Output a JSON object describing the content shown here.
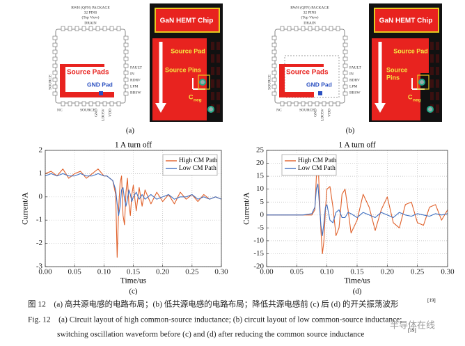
{
  "panels": [
    {
      "package_title": "RWH (QFN) PACKAGE",
      "pins": "32 PINS",
      "view": "(Top View)",
      "drain": "DRAIN",
      "source_pads": "Source Pads",
      "gnd_pad": "GND Pad",
      "right_pins": [
        "FAULT",
        "IN",
        "RDRV",
        "LPM",
        "BBSW"
      ],
      "left_label": "SOURCE",
      "bottom_labels": [
        "NC",
        "SOURCE",
        "GND",
        "LDO5V",
        "VDD"
      ],
      "chip": "GaN HEMT Chip",
      "source_pad": "Source Pad",
      "source_pins": [
        "Source Pins"
      ],
      "cneg": "C",
      "cneg_sub": "neg",
      "label": "(a)"
    },
    {
      "package_title": "RWH (QFN) PACKAGE",
      "pins": "32 PINS",
      "view": "(Top View)",
      "drain": "DRAIN",
      "source_pads": "Source Pads",
      "gnd_pad": "GND Pad",
      "right_pins": [
        "FAULT",
        "IN",
        "RDRV",
        "LPM",
        "BBSW"
      ],
      "left_label": "SOURCE",
      "bottom_labels": [
        "NC",
        "SOURCE",
        "GND",
        "LDO5V",
        "VDD"
      ],
      "chip": "GaN HEMT Chip",
      "source_pad": "Source Pad",
      "source_pins": [
        "Source",
        "Pins"
      ],
      "cneg": "C",
      "cneg_sub": "neg",
      "label": "(b)"
    }
  ],
  "chart_data": [
    {
      "type": "line",
      "title": "1 A turn off",
      "x_label": "Time/us",
      "y_label": "Current/A",
      "panel_label": "(c)",
      "grid": true,
      "legend": "upper right",
      "xlim": [
        0,
        0.3
      ],
      "ylim": [
        -3,
        2
      ],
      "xticks": [
        {
          "value": 0,
          "label": "0.00"
        },
        {
          "value": 0.05,
          "label": "0.05"
        },
        {
          "value": 0.1,
          "label": "0.10"
        },
        {
          "value": 0.15,
          "label": "0.15"
        },
        {
          "value": 0.2,
          "label": "0.20"
        },
        {
          "value": 0.25,
          "label": "0.25"
        },
        {
          "value": 0.3,
          "label": "0.30"
        }
      ],
      "yticks": [
        -3,
        -2,
        -1,
        0,
        1,
        2
      ],
      "x": [
        0,
        0.01,
        0.02,
        0.03,
        0.04,
        0.05,
        0.06,
        0.07,
        0.08,
        0.09,
        0.1,
        0.105,
        0.11,
        0.115,
        0.12,
        0.1225,
        0.125,
        0.1275,
        0.13,
        0.1325,
        0.135,
        0.1375,
        0.14,
        0.1425,
        0.145,
        0.1475,
        0.15,
        0.155,
        0.16,
        0.165,
        0.17,
        0.18,
        0.19,
        0.2,
        0.21,
        0.22,
        0.23,
        0.24,
        0.25,
        0.26,
        0.27,
        0.28,
        0.29,
        0.3
      ],
      "series": [
        {
          "name": "High CM Path",
          "color": "#e0602a",
          "values": [
            1.0,
            1.1,
            0.9,
            1.2,
            0.8,
            1.0,
            1.1,
            0.8,
            1.0,
            1.2,
            0.9,
            0.9,
            0.8,
            0.7,
            0.1,
            -2.6,
            -0.5,
            0.6,
            0.9,
            -0.8,
            -1.2,
            0.2,
            0.8,
            -0.3,
            -0.8,
            0.1,
            0.5,
            -0.6,
            0.4,
            -0.4,
            0.3,
            -0.3,
            0.2,
            -0.2,
            0.1,
            -0.3,
            0.2,
            -0.1,
            0.1,
            -0.2,
            0.1,
            -0.1,
            0.0,
            -0.1
          ]
        },
        {
          "name": "Low CM Path",
          "color": "#3f6fc0",
          "values": [
            0.9,
            1.0,
            0.9,
            1.0,
            0.9,
            0.9,
            1.0,
            0.9,
            0.9,
            1.0,
            0.9,
            0.9,
            0.8,
            0.7,
            0.3,
            -0.3,
            -0.8,
            -0.4,
            0.3,
            0.4,
            -0.1,
            -0.4,
            -0.1,
            0.3,
            0.1,
            -0.2,
            0.0,
            0.2,
            -0.1,
            0.1,
            -0.1,
            0.1,
            -0.1,
            0.0,
            0.1,
            -0.1,
            0.0,
            0.0,
            0.1,
            -0.1,
            0.0,
            -0.1,
            0.0,
            -0.1
          ]
        }
      ]
    },
    {
      "type": "line",
      "title": "1 A turn off",
      "x_label": "Time/us",
      "y_label": "Current/A",
      "panel_label": "(d)",
      "grid": true,
      "legend": "upper left",
      "xlim": [
        0,
        0.3
      ],
      "ylim": [
        -20,
        25
      ],
      "xticks": [
        {
          "value": 0,
          "label": "0.00"
        },
        {
          "value": 0.05,
          "label": "0.05"
        },
        {
          "value": 0.1,
          "label": "0.10"
        },
        {
          "value": 0.15,
          "label": "0.15"
        },
        {
          "value": 0.2,
          "label": "0.20"
        },
        {
          "value": 0.25,
          "label": "0.25"
        },
        {
          "value": 0.3,
          "label": "0.30"
        }
      ],
      "yticks": [
        -20,
        -15,
        -10,
        -5,
        0,
        5,
        10,
        15,
        20,
        25
      ],
      "x": [
        0,
        0.02,
        0.04,
        0.06,
        0.075,
        0.08,
        0.0825,
        0.085,
        0.0875,
        0.09,
        0.0925,
        0.095,
        0.0975,
        0.1,
        0.105,
        0.11,
        0.115,
        0.12,
        0.125,
        0.13,
        0.135,
        0.14,
        0.15,
        0.16,
        0.17,
        0.18,
        0.19,
        0.2,
        0.21,
        0.22,
        0.23,
        0.24,
        0.25,
        0.26,
        0.27,
        0.28,
        0.29,
        0.3
      ],
      "series": [
        {
          "name": "High CM Path",
          "color": "#e0602a",
          "values": [
            0,
            0,
            0,
            0,
            0,
            2,
            15,
            22,
            8,
            -6,
            -15,
            -10,
            2,
            10,
            11,
            3,
            -8,
            -5,
            8,
            10,
            2,
            -7,
            -2,
            8,
            3,
            -6,
            2,
            7,
            -3,
            -5,
            4,
            5,
            -3,
            -4,
            3,
            4,
            -2,
            2
          ]
        },
        {
          "name": "Low CM Path",
          "color": "#3f6fc0",
          "values": [
            0,
            0,
            0,
            0,
            0.5,
            3,
            10,
            12,
            4,
            -4,
            -8,
            -3,
            3,
            4,
            -2,
            -3,
            1,
            2,
            -1,
            -1,
            1,
            0.5,
            -1,
            1,
            0,
            -1,
            1,
            0,
            -1,
            1,
            0,
            -0.5,
            0.5,
            0,
            -0.5,
            0.5,
            0,
            0.5
          ]
        }
      ]
    }
  ],
  "caption": {
    "cn": "图 12　(a) 高共源电感的电路布局；(b) 低共源电感的电路布局；降低共源电感前 (c) 后 (d) 的开关振荡波形",
    "cn_ref": "[19]",
    "en_1": "Fig. 12　(a) Circuit layout of high common-source inductance; (b) circuit layout of low common-source inductance;",
    "en_2": "switching oscillation waveform before (c) and (d) after reducing the common source inductance",
    "en_ref": "[19]",
    "watermark": "半导体在线"
  }
}
